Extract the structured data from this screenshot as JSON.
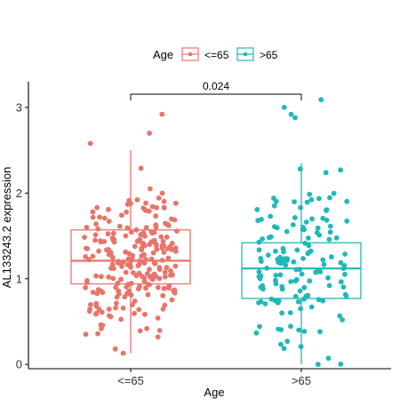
{
  "chart_data": {
    "type": "box",
    "xlabel": "Age",
    "ylabel": "AL133243.2 expression",
    "categories": [
      "<=65",
      ">65"
    ],
    "ylim": [
      -0.05,
      3.3
    ],
    "yticks": [
      "0",
      "1",
      "2",
      "3"
    ],
    "legend": {
      "title": "Age",
      "position": "top",
      "entries": [
        "<=65",
        ">65"
      ]
    },
    "grid": false,
    "series": [
      {
        "name": "<=65",
        "color": "#e8746a",
        "box": {
          "whisker_low": 0.13,
          "q1": 0.94,
          "median": 1.21,
          "q3": 1.57,
          "whisker_high": 2.5
        },
        "points_count": 240,
        "point_range": [
          0.13,
          2.92
        ]
      },
      {
        "name": ">65",
        "color": "#1fb8b8",
        "box": {
          "whisker_low": 0.0,
          "q1": 0.77,
          "median": 1.12,
          "q3": 1.42,
          "whisker_high": 2.35
        },
        "points_count": 150,
        "point_range": [
          0.0,
          3.09
        ]
      }
    ],
    "comparison": {
      "label": "0.024",
      "between": [
        "<=65",
        ">65"
      ]
    }
  }
}
